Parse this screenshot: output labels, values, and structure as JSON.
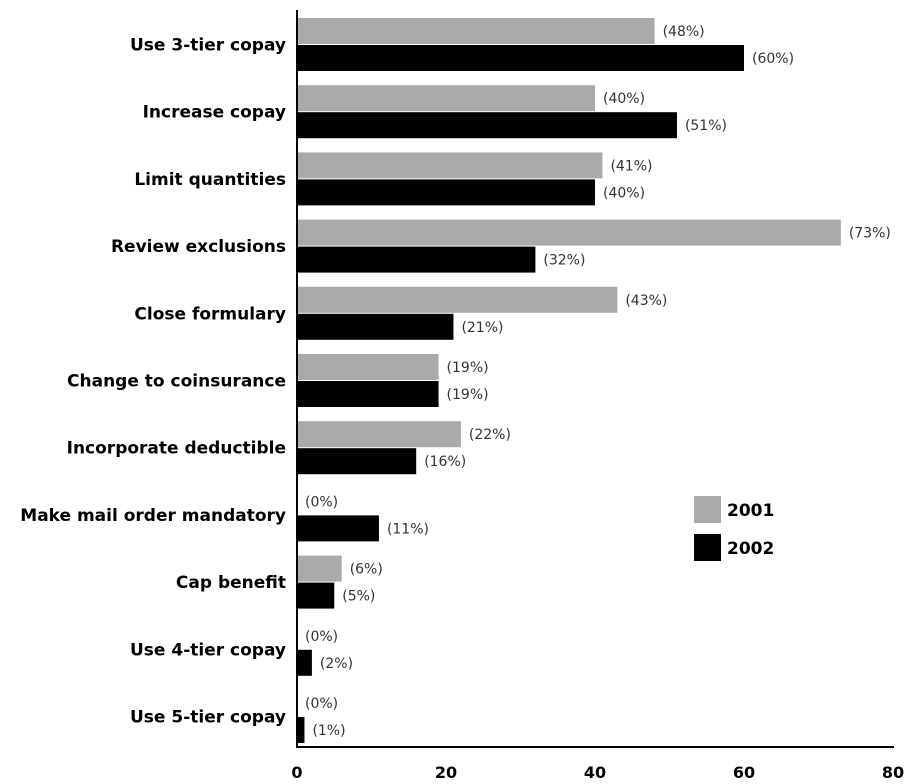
{
  "chart_data": {
    "type": "bar",
    "orientation": "horizontal",
    "categories": [
      "Use 3-tier copay",
      "Increase copay",
      "Limit quantities",
      "Review exclusions",
      "Close formulary",
      "Change to coinsurance",
      "Incorporate deductible",
      "Make mail order mandatory",
      "Cap benefit",
      "Use 4-tier copay",
      "Use 5-tier copay"
    ],
    "series": [
      {
        "name": "2001",
        "color": "#aaaaaa",
        "values": [
          48,
          40,
          41,
          73,
          43,
          19,
          22,
          0,
          6,
          0,
          0
        ],
        "labels": [
          "(48%)",
          "(40%)",
          "(41%)",
          "(73%)",
          "(43%)",
          "(19%)",
          "(22%)",
          "(0%)",
          "(6%)",
          "(0%)",
          "(0%)"
        ]
      },
      {
        "name": "2002",
        "color": "#000000",
        "values": [
          60,
          51,
          40,
          32,
          21,
          19,
          16,
          11,
          5,
          2,
          1
        ],
        "labels": [
          "(60%)",
          "(51%)",
          "(40%)",
          "(32%)",
          "(21%)",
          "(19%)",
          "(16%)",
          "(11%)",
          "(5%)",
          "(2%)",
          "(1%)"
        ]
      }
    ],
    "x_ticks": [
      "0",
      "20",
      "40",
      "60",
      "80"
    ],
    "xlim": [
      0,
      80
    ],
    "legend_position": "right"
  }
}
